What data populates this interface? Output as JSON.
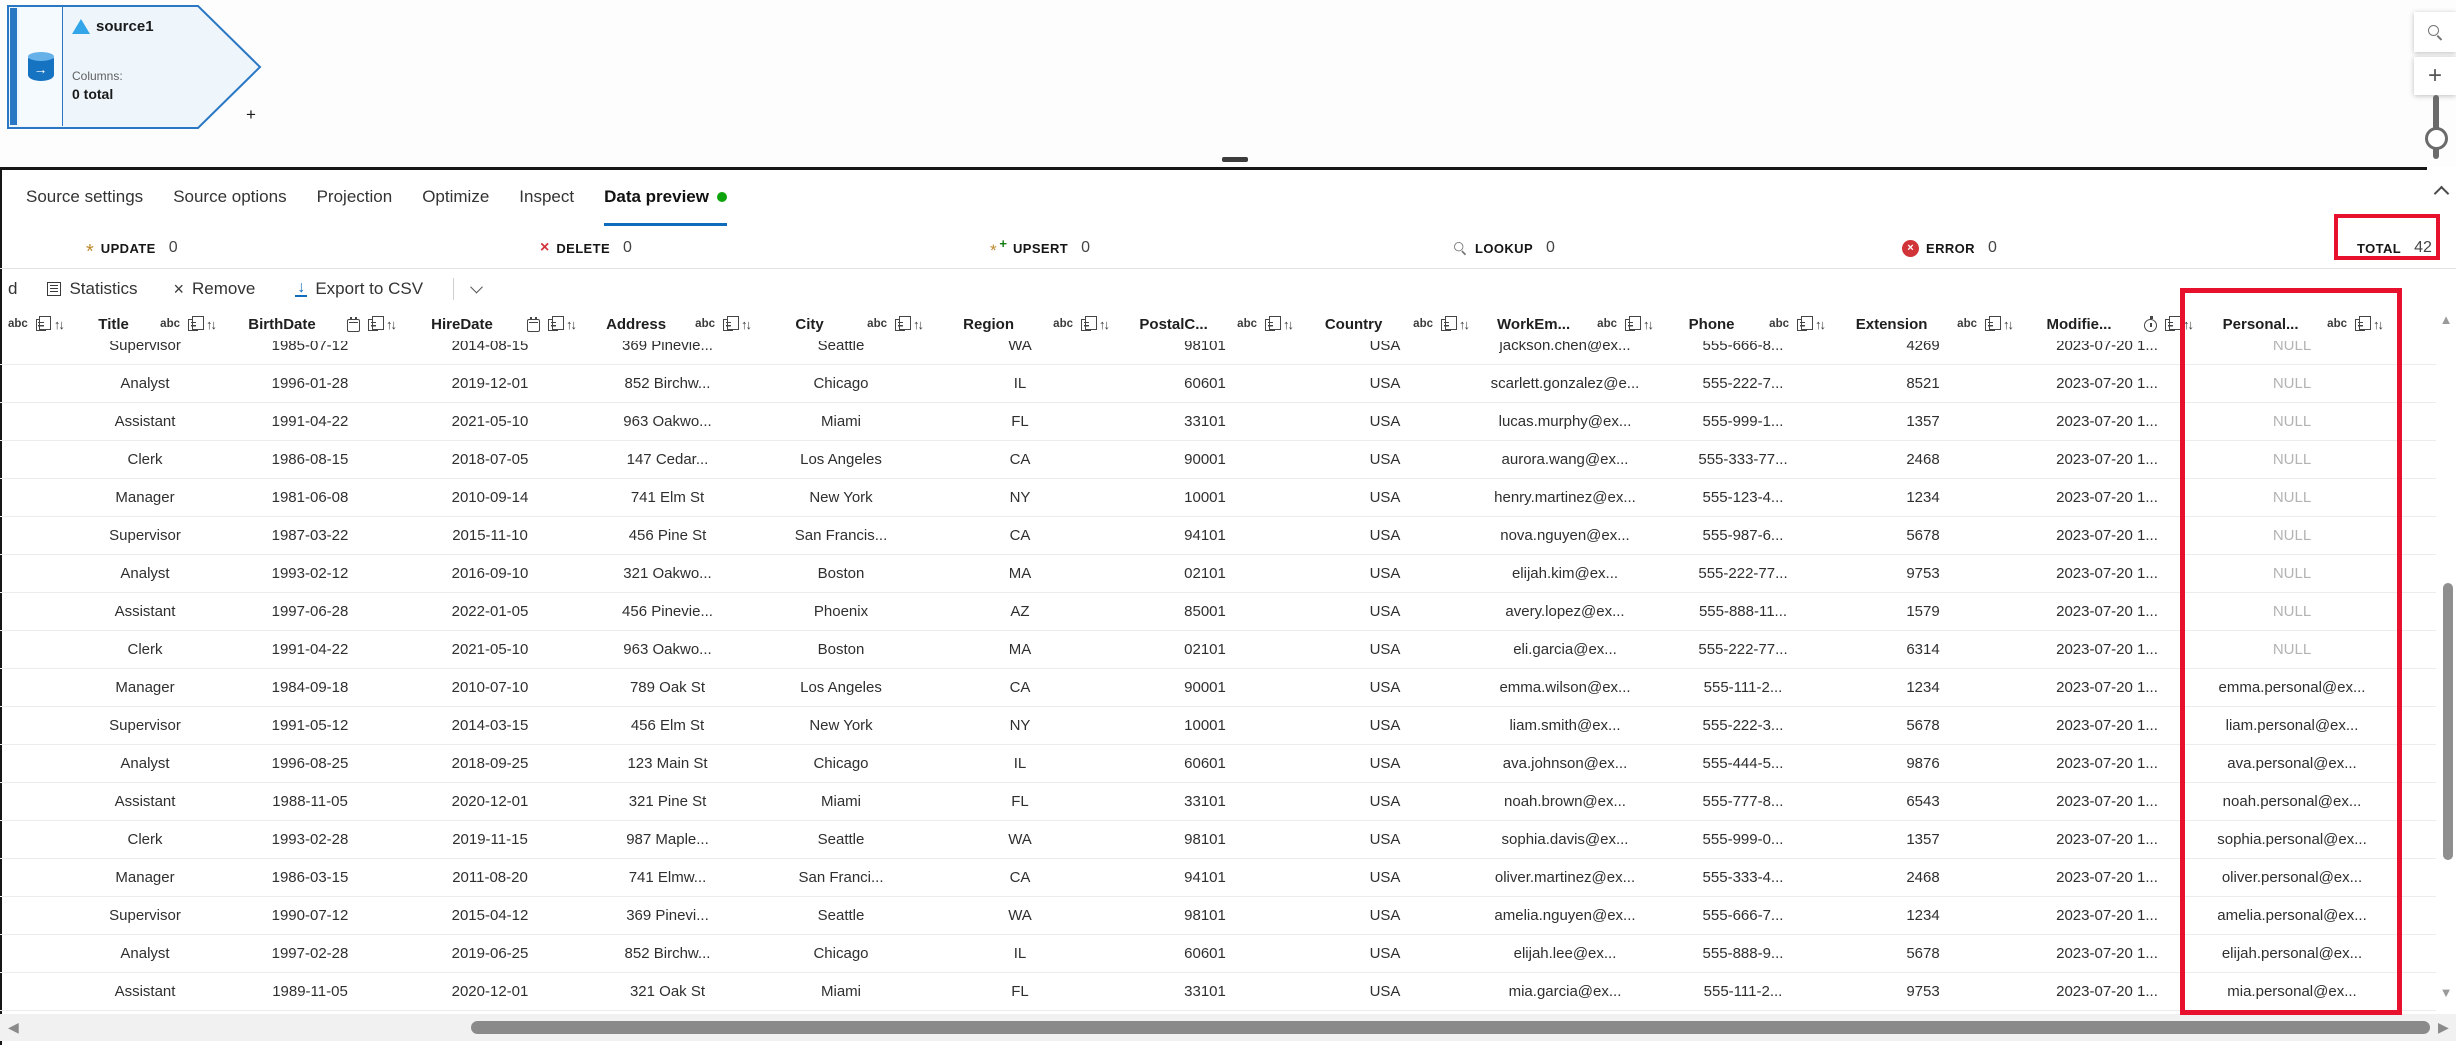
{
  "colors": {
    "accent_blue": "#0f6cbd",
    "tab_status_green": "#0da30d",
    "annotation_red": "#e8112d",
    "update_gold": "#bf8a2e",
    "error_red": "#d13438"
  },
  "node": {
    "title": "source1",
    "columns_label": "Columns:",
    "columns_value": "0 total",
    "add_button": "+"
  },
  "canvas_controls": {
    "zoom_in_label": "+"
  },
  "tabs": [
    {
      "label": "Source settings",
      "active": false
    },
    {
      "label": "Source options",
      "active": false
    },
    {
      "label": "Projection",
      "active": false
    },
    {
      "label": "Optimize",
      "active": false
    },
    {
      "label": "Inspect",
      "active": false
    },
    {
      "label": "Data preview",
      "active": true,
      "status_dot": true
    }
  ],
  "status_bar": [
    {
      "id": "update",
      "icon": "asterisk-gold",
      "label": "UPDATE",
      "count": "0"
    },
    {
      "id": "delete",
      "icon": "x-red",
      "label": "DELETE",
      "count": "0"
    },
    {
      "id": "upsert",
      "icon": "asterisk-plus",
      "label": "UPSERT",
      "count": "0"
    },
    {
      "id": "lookup",
      "icon": "magnifier",
      "label": "LOOKUP",
      "count": "0"
    },
    {
      "id": "error",
      "icon": "error-circle-x",
      "label": "ERROR",
      "count": "0"
    },
    {
      "id": "total",
      "icon": "none",
      "label": "TOTAL",
      "count": "42",
      "highlighted": true
    }
  ],
  "toolbar": {
    "clipped_text": "d",
    "buttons": [
      {
        "id": "statistics",
        "icon": "statistics-icon",
        "label": "Statistics"
      },
      {
        "id": "remove",
        "icon": "x-icon",
        "label": "Remove"
      },
      {
        "id": "export-csv",
        "icon": "download-icon",
        "label": "Export to CSV"
      }
    ]
  },
  "grid": {
    "orphan_header_type": "string",
    "columns": [
      {
        "name": "Title",
        "type": "string"
      },
      {
        "name": "BirthDate",
        "type": "date"
      },
      {
        "name": "HireDate",
        "type": "date"
      },
      {
        "name": "Address",
        "type": "string"
      },
      {
        "name": "City",
        "type": "string"
      },
      {
        "name": "Region",
        "type": "string"
      },
      {
        "name": "PostalC...",
        "type": "string"
      },
      {
        "name": "Country",
        "type": "string"
      },
      {
        "name": "WorkEm...",
        "type": "string"
      },
      {
        "name": "Phone",
        "type": "string"
      },
      {
        "name": "Extension",
        "type": "string"
      },
      {
        "name": "Modifie...",
        "type": "timestamp"
      },
      {
        "name": "Personal...",
        "type": "string"
      }
    ],
    "null_text": "NULL",
    "rows": [
      [
        "Supervisor",
        "1985-07-12",
        "2014-08-15",
        "369 Pinevie...",
        "Seattle",
        "WA",
        "98101",
        "USA",
        "jackson.chen@ex...",
        "555-666-8...",
        "4269",
        "2023-07-20 1...",
        "NULL"
      ],
      [
        "Analyst",
        "1996-01-28",
        "2019-12-01",
        "852 Birchw...",
        "Chicago",
        "IL",
        "60601",
        "USA",
        "scarlett.gonzalez@e...",
        "555-222-7...",
        "8521",
        "2023-07-20 1...",
        "NULL"
      ],
      [
        "Assistant",
        "1991-04-22",
        "2021-05-10",
        "963 Oakwo...",
        "Miami",
        "FL",
        "33101",
        "USA",
        "lucas.murphy@ex...",
        "555-999-1...",
        "1357",
        "2023-07-20 1...",
        "NULL"
      ],
      [
        "Clerk",
        "1986-08-15",
        "2018-07-05",
        "147 Cedar...",
        "Los Angeles",
        "CA",
        "90001",
        "USA",
        "aurora.wang@ex...",
        "555-333-77...",
        "2468",
        "2023-07-20 1...",
        "NULL"
      ],
      [
        "Manager",
        "1981-06-08",
        "2010-09-14",
        "741 Elm St",
        "New York",
        "NY",
        "10001",
        "USA",
        "henry.martinez@ex...",
        "555-123-4...",
        "1234",
        "2023-07-20 1...",
        "NULL"
      ],
      [
        "Supervisor",
        "1987-03-22",
        "2015-11-10",
        "456 Pine St",
        "San Francis...",
        "CA",
        "94101",
        "USA",
        "nova.nguyen@ex...",
        "555-987-6...",
        "5678",
        "2023-07-20 1...",
        "NULL"
      ],
      [
        "Analyst",
        "1993-02-12",
        "2016-09-10",
        "321 Oakwo...",
        "Boston",
        "MA",
        "02101",
        "USA",
        "elijah.kim@ex...",
        "555-222-77...",
        "9753",
        "2023-07-20 1...",
        "NULL"
      ],
      [
        "Assistant",
        "1997-06-28",
        "2022-01-05",
        "456 Pinevie...",
        "Phoenix",
        "AZ",
        "85001",
        "USA",
        "avery.lopez@ex...",
        "555-888-11...",
        "1579",
        "2023-07-20 1...",
        "NULL"
      ],
      [
        "Clerk",
        "1991-04-22",
        "2021-05-10",
        "963 Oakwo...",
        "Boston",
        "MA",
        "02101",
        "USA",
        "eli.garcia@ex...",
        "555-222-77...",
        "6314",
        "2023-07-20 1...",
        "NULL"
      ],
      [
        "Manager",
        "1984-09-18",
        "2010-07-10",
        "789 Oak St",
        "Los Angeles",
        "CA",
        "90001",
        "USA",
        "emma.wilson@ex...",
        "555-111-2...",
        "1234",
        "2023-07-20 1...",
        "emma.personal@ex..."
      ],
      [
        "Supervisor",
        "1991-05-12",
        "2014-03-15",
        "456 Elm St",
        "New York",
        "NY",
        "10001",
        "USA",
        "liam.smith@ex...",
        "555-222-3...",
        "5678",
        "2023-07-20 1...",
        "liam.personal@ex..."
      ],
      [
        "Analyst",
        "1996-08-25",
        "2018-09-25",
        "123 Main St",
        "Chicago",
        "IL",
        "60601",
        "USA",
        "ava.johnson@ex...",
        "555-444-5...",
        "9876",
        "2023-07-20 1...",
        "ava.personal@ex..."
      ],
      [
        "Assistant",
        "1988-11-05",
        "2020-12-01",
        "321 Pine St",
        "Miami",
        "FL",
        "33101",
        "USA",
        "noah.brown@ex...",
        "555-777-8...",
        "6543",
        "2023-07-20 1...",
        "noah.personal@ex..."
      ],
      [
        "Clerk",
        "1993-02-28",
        "2019-11-15",
        "987 Maple...",
        "Seattle",
        "WA",
        "98101",
        "USA",
        "sophia.davis@ex...",
        "555-999-0...",
        "1357",
        "2023-07-20 1...",
        "sophia.personal@ex..."
      ],
      [
        "Manager",
        "1986-03-15",
        "2011-08-20",
        "741 Elmw...",
        "San Franci...",
        "CA",
        "94101",
        "USA",
        "oliver.martinez@ex...",
        "555-333-4...",
        "2468",
        "2023-07-20 1...",
        "oliver.personal@ex..."
      ],
      [
        "Supervisor",
        "1990-07-12",
        "2015-04-12",
        "369 Pinevi...",
        "Seattle",
        "WA",
        "98101",
        "USA",
        "amelia.nguyen@ex...",
        "555-666-7...",
        "1234",
        "2023-07-20 1...",
        "amelia.personal@ex..."
      ],
      [
        "Analyst",
        "1997-02-28",
        "2019-06-25",
        "852 Birchw...",
        "Chicago",
        "IL",
        "60601",
        "USA",
        "elijah.lee@ex...",
        "555-888-9...",
        "5678",
        "2023-07-20 1...",
        "elijah.personal@ex..."
      ],
      [
        "Assistant",
        "1989-11-05",
        "2020-12-01",
        "321 Oak St",
        "Miami",
        "FL",
        "33101",
        "USA",
        "mia.garcia@ex...",
        "555-111-2...",
        "9753",
        "2023-07-20 1...",
        "mia.personal@ex..."
      ]
    ]
  },
  "annotations": {
    "total_box": "highlight around TOTAL 42 counter",
    "personal_box": "highlight around Personal... column"
  }
}
